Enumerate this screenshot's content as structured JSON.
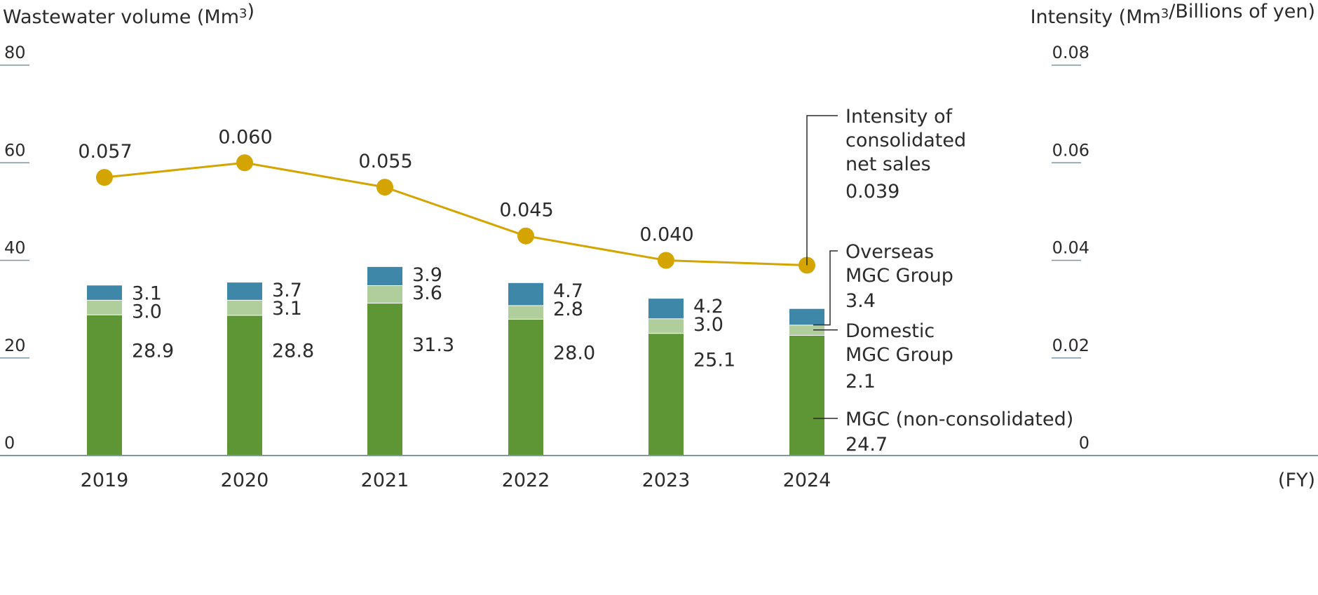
{
  "chart_data": {
    "type": "bar",
    "subtype": "stacked bar with line on secondary axis",
    "left_axis": {
      "title": "Wastewater volume (Mm3)",
      "range": [
        0,
        80
      ],
      "ticks": [
        "0",
        "20",
        "40",
        "60",
        "80"
      ]
    },
    "right_axis": {
      "title": "Intensity (Mm3/Billions of yen)",
      "range": [
        0,
        0.08
      ],
      "ticks": [
        "0",
        "0.02",
        "0.04",
        "0.06",
        "0.08"
      ]
    },
    "x_unit": "(FY)",
    "categories": [
      "2019",
      "2020",
      "2021",
      "2022",
      "2023",
      "2024"
    ],
    "series": [
      {
        "name": "MGC (non-consolidated)",
        "type": "bar",
        "color": "#5e9636",
        "values": [
          28.9,
          28.8,
          31.3,
          28.0,
          25.1,
          24.7
        ],
        "labels": [
          "28.9",
          "28.8",
          "31.3",
          "28.0",
          "25.1",
          "24.7"
        ]
      },
      {
        "name": "Domestic MGC Group",
        "type": "bar",
        "color": "#b0cd9c",
        "values": [
          3.0,
          3.1,
          3.6,
          2.8,
          3.0,
          2.1
        ],
        "labels": [
          "3.0",
          "3.1",
          "3.6",
          "2.8",
          "3.0",
          "2.1"
        ]
      },
      {
        "name": "Overseas MGC Group",
        "type": "bar",
        "color": "#3e87a8",
        "values": [
          3.1,
          3.7,
          3.9,
          4.7,
          4.2,
          3.4
        ],
        "labels": [
          "3.1",
          "3.7",
          "3.9",
          "4.7",
          "4.2",
          "3.4"
        ]
      },
      {
        "name": "Intensity of consolidated net sales",
        "type": "line",
        "axis": "right",
        "color": "#d4a500",
        "values": [
          0.057,
          0.06,
          0.055,
          0.045,
          0.04,
          0.039
        ],
        "labels": [
          "0.057",
          "0.060",
          "0.055",
          "0.045",
          "0.040",
          "0.039"
        ]
      }
    ],
    "legend": {
      "intensity": [
        "Intensity of",
        "consolidated",
        "net sales"
      ],
      "overseas": [
        "Overseas",
        "MGC Group"
      ],
      "domestic": [
        "Domestic",
        "MGC Group"
      ],
      "mgc": [
        "MGC (non-consolidated)"
      ]
    },
    "legend_placement": "right, inline labels",
    "grid": false
  }
}
